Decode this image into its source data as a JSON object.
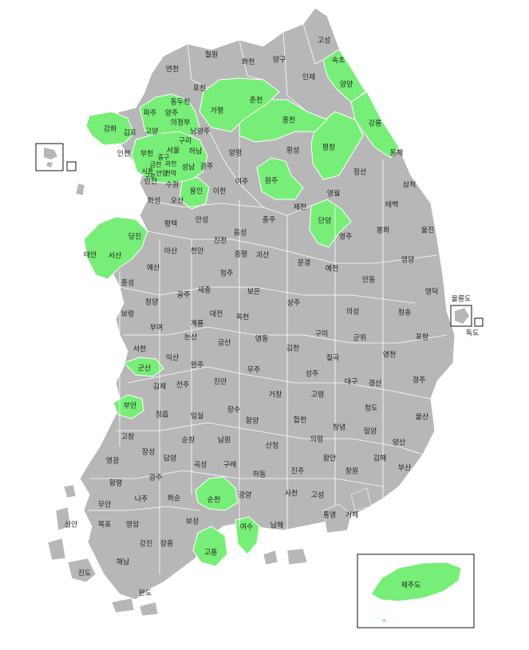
{
  "colors": {
    "land": "#b7b7b7",
    "highlight": "#77ee77",
    "border": "#ffffff",
    "outline": "#111111"
  },
  "labels": {
    "goseong_n": "고성",
    "cheorwon": "철원",
    "hwacheon": "화천",
    "yanggu": "양구",
    "sokcho": "속초",
    "inje": "인제",
    "yangyang": "양양",
    "yeoncheon": "연천",
    "pocheon": "포천",
    "dongducheon": "동두천",
    "paju": "파주",
    "yangju": "양주",
    "gapyeong": "가평",
    "chuncheon": "춘천",
    "gangneung": "강릉",
    "uijeongbu": "의정부",
    "namyangju": "남양주",
    "hongcheon": "홍천",
    "ganghwa": "강화",
    "gimpo": "김포",
    "goyang": "고양",
    "guri": "구리",
    "seoul": "서울",
    "hanam": "하남",
    "pyeongchang": "평창",
    "donghae": "동해",
    "incheon": "인천",
    "bucheon": "부천",
    "gwacheon": "과천",
    "yangpyeong": "양평",
    "hoengseong": "횡성",
    "siheung": "시흥",
    "anyang": "안양",
    "seongnam": "성남",
    "gwangju_g": "광주",
    "jeongseon": "정선",
    "ansan": "안산",
    "suwon": "수원",
    "yongin": "용인",
    "icheon": "이천",
    "yeoju": "여주",
    "wonju": "원주",
    "samcheok": "삼척",
    "hwaseong": "화성",
    "osan": "오산",
    "jecheon": "제천",
    "yeongwol": "영월",
    "taebaek": "태백",
    "pyeongtaek": "평택",
    "anseong": "안성",
    "chungju": "충주",
    "danyang": "단양",
    "dangjin": "당진",
    "jincheon": "진천",
    "eumseong": "음성",
    "yeongju": "영주",
    "bonghwa": "봉화",
    "uljin": "울진",
    "taean": "태안",
    "seosan": "서산",
    "asan": "아산",
    "cheonan": "천안",
    "jeungpyeong": "증평",
    "goesan": "괴산",
    "yeongyang": "영양",
    "yesan": "예산",
    "mungyeong": "문경",
    "yecheon": "예천",
    "andong": "안동",
    "hongseong": "홍성",
    "sejong": "세종",
    "cheongju": "청주",
    "gongju": "공주",
    "boeun": "보은",
    "sangju": "상주",
    "yeongdeok": "영덕",
    "cheongyang": "청양",
    "ulleungdo": "울릉도",
    "dokdo": "독도",
    "uiseong": "의성",
    "boryeong": "보령",
    "daejeon": "대전",
    "okcheon": "옥천",
    "cheongsong": "청송",
    "buyeo": "부여",
    "gyeryong": "계룡",
    "nonsan": "논산",
    "gumi": "구미",
    "gunwi": "군위",
    "pohang": "포항",
    "geumsan": "금산",
    "yeongdong": "영동",
    "gimcheon": "김천",
    "chilgok": "칠곡",
    "seocheon": "서천",
    "iksan": "익산",
    "wanju": "완주",
    "yeongcheon": "영천",
    "gunsan": "군산",
    "muju": "무주",
    "seongju": "성주",
    "daegu": "대구",
    "gyeongsan": "경산",
    "gyeongju": "경주",
    "gimje": "김제",
    "jeonju": "전주",
    "jinan": "진안",
    "geochang": "거창",
    "goryeong": "고령",
    "buan": "부안",
    "jangsu": "장수",
    "cheongdo": "청도",
    "jeongeup": "정읍",
    "imsil": "임실",
    "hamyang": "함양",
    "hapcheon": "합천",
    "changnyeong": "창녕",
    "miryang": "밀양",
    "ulsan": "울산",
    "gochang": "고창",
    "sunchang": "순창",
    "namwon": "남원",
    "yangsan": "양산",
    "sancheong": "산청",
    "uiryeong": "의령",
    "jangseong": "장성",
    "damyang": "담양",
    "gimhae": "김해",
    "yeonggwang": "영광",
    "gokseong": "곡성",
    "gurye": "구례",
    "haman": "함안",
    "busan": "부산",
    "hadong": "하동",
    "jinju": "진주",
    "changwon": "창원",
    "hampyeong": "함평",
    "gwangju_j": "광주",
    "muan": "무안",
    "naju": "나주",
    "hwasun": "화순",
    "suncheon": "순천",
    "gwangyang": "광양",
    "sacheon": "사천",
    "goseong_s": "고성",
    "sinan": "신안",
    "mokpo": "목포",
    "yeongam": "영암",
    "boseong": "보성",
    "yeosu": "여수",
    "namhae": "남해",
    "tongyeong": "통영",
    "geoje": "거제",
    "gangjin": "강진",
    "jangheung": "장흥",
    "goheung": "고흥",
    "haenam": "해남",
    "jindo": "진도",
    "wando": "완도",
    "jejudo": "제주도",
    "seoul_d1": "중구",
    "seoul_d2": "금천",
    "seoul_d3": "구로",
    "seoul_d4": "관악"
  }
}
